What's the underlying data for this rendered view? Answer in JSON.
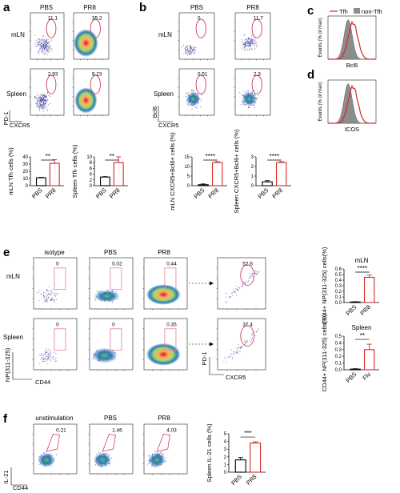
{
  "panels": {
    "a": {
      "label": "a",
      "columns": [
        "PBS",
        "PR8"
      ],
      "rows": [
        "mLN",
        "Spleen"
      ],
      "gate_values": [
        [
          "11.1",
          "35.2"
        ],
        [
          "2.93",
          "9.23"
        ]
      ],
      "x_axis": "CXCR5",
      "y_axis": "PD-1"
    },
    "b": {
      "label": "b",
      "columns": [
        "PBS",
        "PR8"
      ],
      "rows": [
        "mLN",
        "Spleen"
      ],
      "gate_values": [
        [
          "0",
          "11.7"
        ],
        [
          "0.51",
          "2.3"
        ]
      ],
      "x_axis": "CXCR5",
      "y_axis": "Bcl6"
    },
    "c": {
      "label": "c",
      "legend": [
        "Tfh",
        "non-Tfh"
      ],
      "y_axis": "Events (% of max)",
      "x_axis": "Bcl6"
    },
    "d": {
      "label": "d",
      "y_axis": "Events (% of max)",
      "x_axis": "ICOS"
    },
    "e": {
      "label": "e",
      "columns": [
        "isotype",
        "PBS",
        "PR8"
      ],
      "rows": [
        "mLN",
        "Spleen"
      ],
      "gate_values": [
        [
          "0",
          "0.02",
          "0.44"
        ],
        [
          "0",
          "0",
          "0.35"
        ]
      ],
      "x_axis": "CD44",
      "y_axis": "NP(311-325)",
      "sub_gate_values": [
        "52.6",
        "37.4"
      ],
      "sub_x_axis": "CXCR5",
      "sub_y_axis": "PD-1"
    },
    "f": {
      "label": "f",
      "columns": [
        "unstimulation",
        "PBS",
        "PR8"
      ],
      "gate_values": [
        "0.21",
        "1.46",
        "4.03"
      ],
      "x_axis": "CD44",
      "y_axis": "IL-21"
    }
  },
  "chart_data": [
    {
      "id": "a-mln",
      "type": "bar",
      "categories": [
        "PBS",
        "PR8"
      ],
      "values": [
        11,
        31
      ],
      "errors": [
        0.6,
        5
      ],
      "ylabel": "mLN Tfh cells (%)",
      "ylim": [
        0,
        40
      ],
      "yticks": [
        0,
        10,
        20,
        30,
        40
      ],
      "significance": "**",
      "colors": [
        "#000000",
        "#d62728"
      ]
    },
    {
      "id": "a-spleen",
      "type": "bar",
      "categories": [
        "PBS",
        "PR8"
      ],
      "values": [
        3,
        8
      ],
      "errors": [
        0.15,
        2
      ],
      "ylabel": "Spleen Tfh cells (%)",
      "ylim": [
        0,
        10
      ],
      "yticks": [
        0,
        2,
        4,
        6,
        8,
        10
      ],
      "significance": "**",
      "colors": [
        "#000000",
        "#d62728"
      ]
    },
    {
      "id": "b-mln",
      "type": "bar",
      "categories": [
        "PBS",
        "PR8"
      ],
      "values": [
        0.5,
        12
      ],
      "errors": [
        0.4,
        0.6
      ],
      "ylabel": "mLN CXCR5+Bcl6+ cells (%)",
      "ylim": [
        0,
        15
      ],
      "yticks": [
        0,
        5,
        10,
        15
      ],
      "significance": "****",
      "colors": [
        "#000000",
        "#d62728"
      ]
    },
    {
      "id": "b-spleen",
      "type": "bar",
      "categories": [
        "PBS",
        "PR8"
      ],
      "values": [
        0.4,
        2.4
      ],
      "errors": [
        0.12,
        0.12
      ],
      "ylabel": "Spleen CXCR5+Bcl6+ cells (%)",
      "ylim": [
        0,
        3
      ],
      "yticks": [
        0,
        1,
        2,
        3
      ],
      "significance": "****",
      "colors": [
        "#000000",
        "#d62728"
      ]
    },
    {
      "id": "e-mln",
      "type": "bar",
      "title": "mLN",
      "categories": [
        "PBS",
        "PR8"
      ],
      "values": [
        0.01,
        0.45
      ],
      "errors": [
        0.005,
        0.04
      ],
      "ylabel": "CD44+ NP(311-325) cells(%)",
      "ylim": [
        0,
        0.6
      ],
      "yticks": [
        0.0,
        0.1,
        0.2,
        0.3,
        0.4,
        0.5,
        0.6
      ],
      "significance": "****",
      "colors": [
        "#000000",
        "#d62728"
      ]
    },
    {
      "id": "e-spleen",
      "type": "bar",
      "title": "Spleen",
      "categories": [
        "PBS",
        "Flu"
      ],
      "values": [
        0.01,
        0.3
      ],
      "errors": [
        0.005,
        0.08
      ],
      "ylabel": "CD44+ NP(311-325) cells(%)",
      "ylim": [
        0,
        0.5
      ],
      "yticks": [
        0.0,
        0.1,
        0.2,
        0.3,
        0.4,
        0.5
      ],
      "significance": "**",
      "colors": [
        "#000000",
        "#d62728"
      ]
    },
    {
      "id": "f-spleen",
      "type": "bar",
      "categories": [
        "PBS",
        "PR8"
      ],
      "values": [
        1.6,
        3.8
      ],
      "errors": [
        0.3,
        0.15
      ],
      "ylabel": "Spleen IL-21 cells (%)",
      "ylim": [
        0,
        5
      ],
      "yticks": [
        0,
        1,
        2,
        3,
        4,
        5
      ],
      "significance": "***",
      "colors": [
        "#000000",
        "#d62728"
      ]
    }
  ]
}
